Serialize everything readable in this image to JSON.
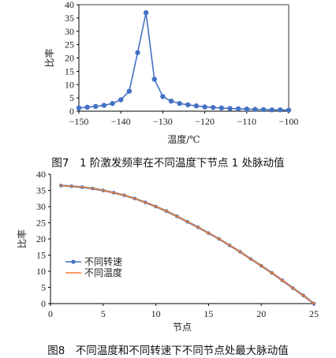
{
  "captions": {
    "fig7": "图7　1 阶激发频率在不同温度下节点 1 处脉动值",
    "fig8": "图8　不同温度和不同转速下不同节点处最大脉动值"
  },
  "colors": {
    "series_blue": "#4472C4",
    "series_orange": "#ED7D31",
    "axis": "#000000"
  },
  "chart_data": [
    {
      "type": "line",
      "title": "",
      "xlabel": "温度/℃",
      "ylabel": "比率",
      "xlim": [
        -150,
        -100
      ],
      "ylim": [
        0,
        40
      ],
      "x_ticks": [
        -150,
        -140,
        -130,
        -120,
        -110,
        -100
      ],
      "x_tick_labels": [
        "−150",
        "−140",
        "−130",
        "−120",
        "−110",
        "−100"
      ],
      "y_ticks": [
        0,
        5,
        10,
        15,
        20,
        25,
        30,
        35,
        40
      ],
      "grid": false,
      "legend": "none",
      "series": [
        {
          "x": [
            -150,
            -148,
            -146,
            -144,
            -142,
            -140,
            -138,
            -136,
            -134,
            -132,
            -130,
            -128,
            -126,
            -124,
            -122,
            -120,
            -118,
            -116,
            -114,
            -112,
            -110,
            -108,
            -106,
            -104,
            -102,
            -100
          ],
          "y": [
            1.2,
            1.5,
            1.8,
            2.2,
            2.9,
            4.3,
            7.5,
            22,
            37,
            12,
            5.5,
            3.8,
            2.9,
            2.4,
            2.0,
            1.6,
            1.4,
            1.2,
            1.0,
            0.9,
            0.8,
            0.7,
            0.6,
            0.5,
            0.5,
            0.4
          ]
        }
      ]
    },
    {
      "type": "line",
      "title": "",
      "xlabel": "节点",
      "ylabel": "比率",
      "xlim": [
        0,
        25
      ],
      "ylim": [
        0,
        40
      ],
      "x_ticks": [
        0,
        5,
        10,
        15,
        20,
        25
      ],
      "y_ticks": [
        0,
        5,
        10,
        15,
        20,
        25,
        30,
        35,
        40
      ],
      "grid": false,
      "legend": "center-left",
      "x": [
        1,
        2,
        3,
        4,
        5,
        6,
        7,
        8,
        9,
        10,
        11,
        12,
        13,
        14,
        15,
        16,
        17,
        18,
        19,
        20,
        21,
        22,
        23,
        24,
        25
      ],
      "series": [
        {
          "name": "不同转速",
          "values": [
            36.5,
            36.3,
            36.0,
            35.6,
            35.0,
            34.3,
            33.5,
            32.5,
            31.3,
            30.0,
            28.6,
            27.0,
            25.3,
            23.6,
            21.8,
            20.0,
            18.0,
            16.0,
            13.8,
            11.7,
            9.5,
            7.2,
            4.8,
            2.5,
            0.0
          ]
        },
        {
          "name": "不同温度",
          "values": [
            36.5,
            36.3,
            36.0,
            35.6,
            35.0,
            34.3,
            33.5,
            32.5,
            31.3,
            30.0,
            28.6,
            27.0,
            25.3,
            23.6,
            21.8,
            20.0,
            18.0,
            16.0,
            13.8,
            11.7,
            9.5,
            7.2,
            4.8,
            2.5,
            0.0
          ]
        }
      ]
    }
  ]
}
